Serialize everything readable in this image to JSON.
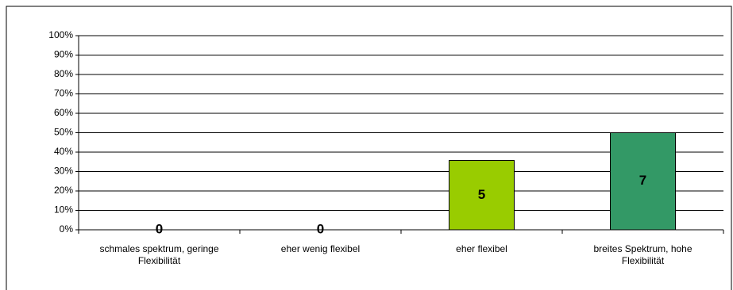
{
  "chart_data": {
    "type": "bar",
    "categories": [
      "schmales spektrum, geringe Flexibilität",
      "eher wenig flexibel",
      "eher flexibel",
      "breites Spektrum, hohe Flexibilität"
    ],
    "values": [
      0,
      0,
      35.7,
      50
    ],
    "counts": [
      0,
      0,
      5,
      7
    ],
    "colors": [
      "#99cc00",
      "#99cc00",
      "#99cc00",
      "#339966"
    ],
    "ylim": [
      0,
      100
    ],
    "yticks": [
      {
        "value": 0,
        "label": "0%"
      },
      {
        "value": 10,
        "label": "10%"
      },
      {
        "value": 20,
        "label": "20%"
      },
      {
        "value": 30,
        "label": "30%"
      },
      {
        "value": 40,
        "label": "40%"
      },
      {
        "value": 50,
        "label": "50%"
      },
      {
        "value": 60,
        "label": "60%"
      },
      {
        "value": 70,
        "label": "70%"
      },
      {
        "value": 80,
        "label": "80%"
      },
      {
        "value": 90,
        "label": "90%"
      },
      {
        "value": 100,
        "label": "100%"
      }
    ],
    "grid": true
  }
}
